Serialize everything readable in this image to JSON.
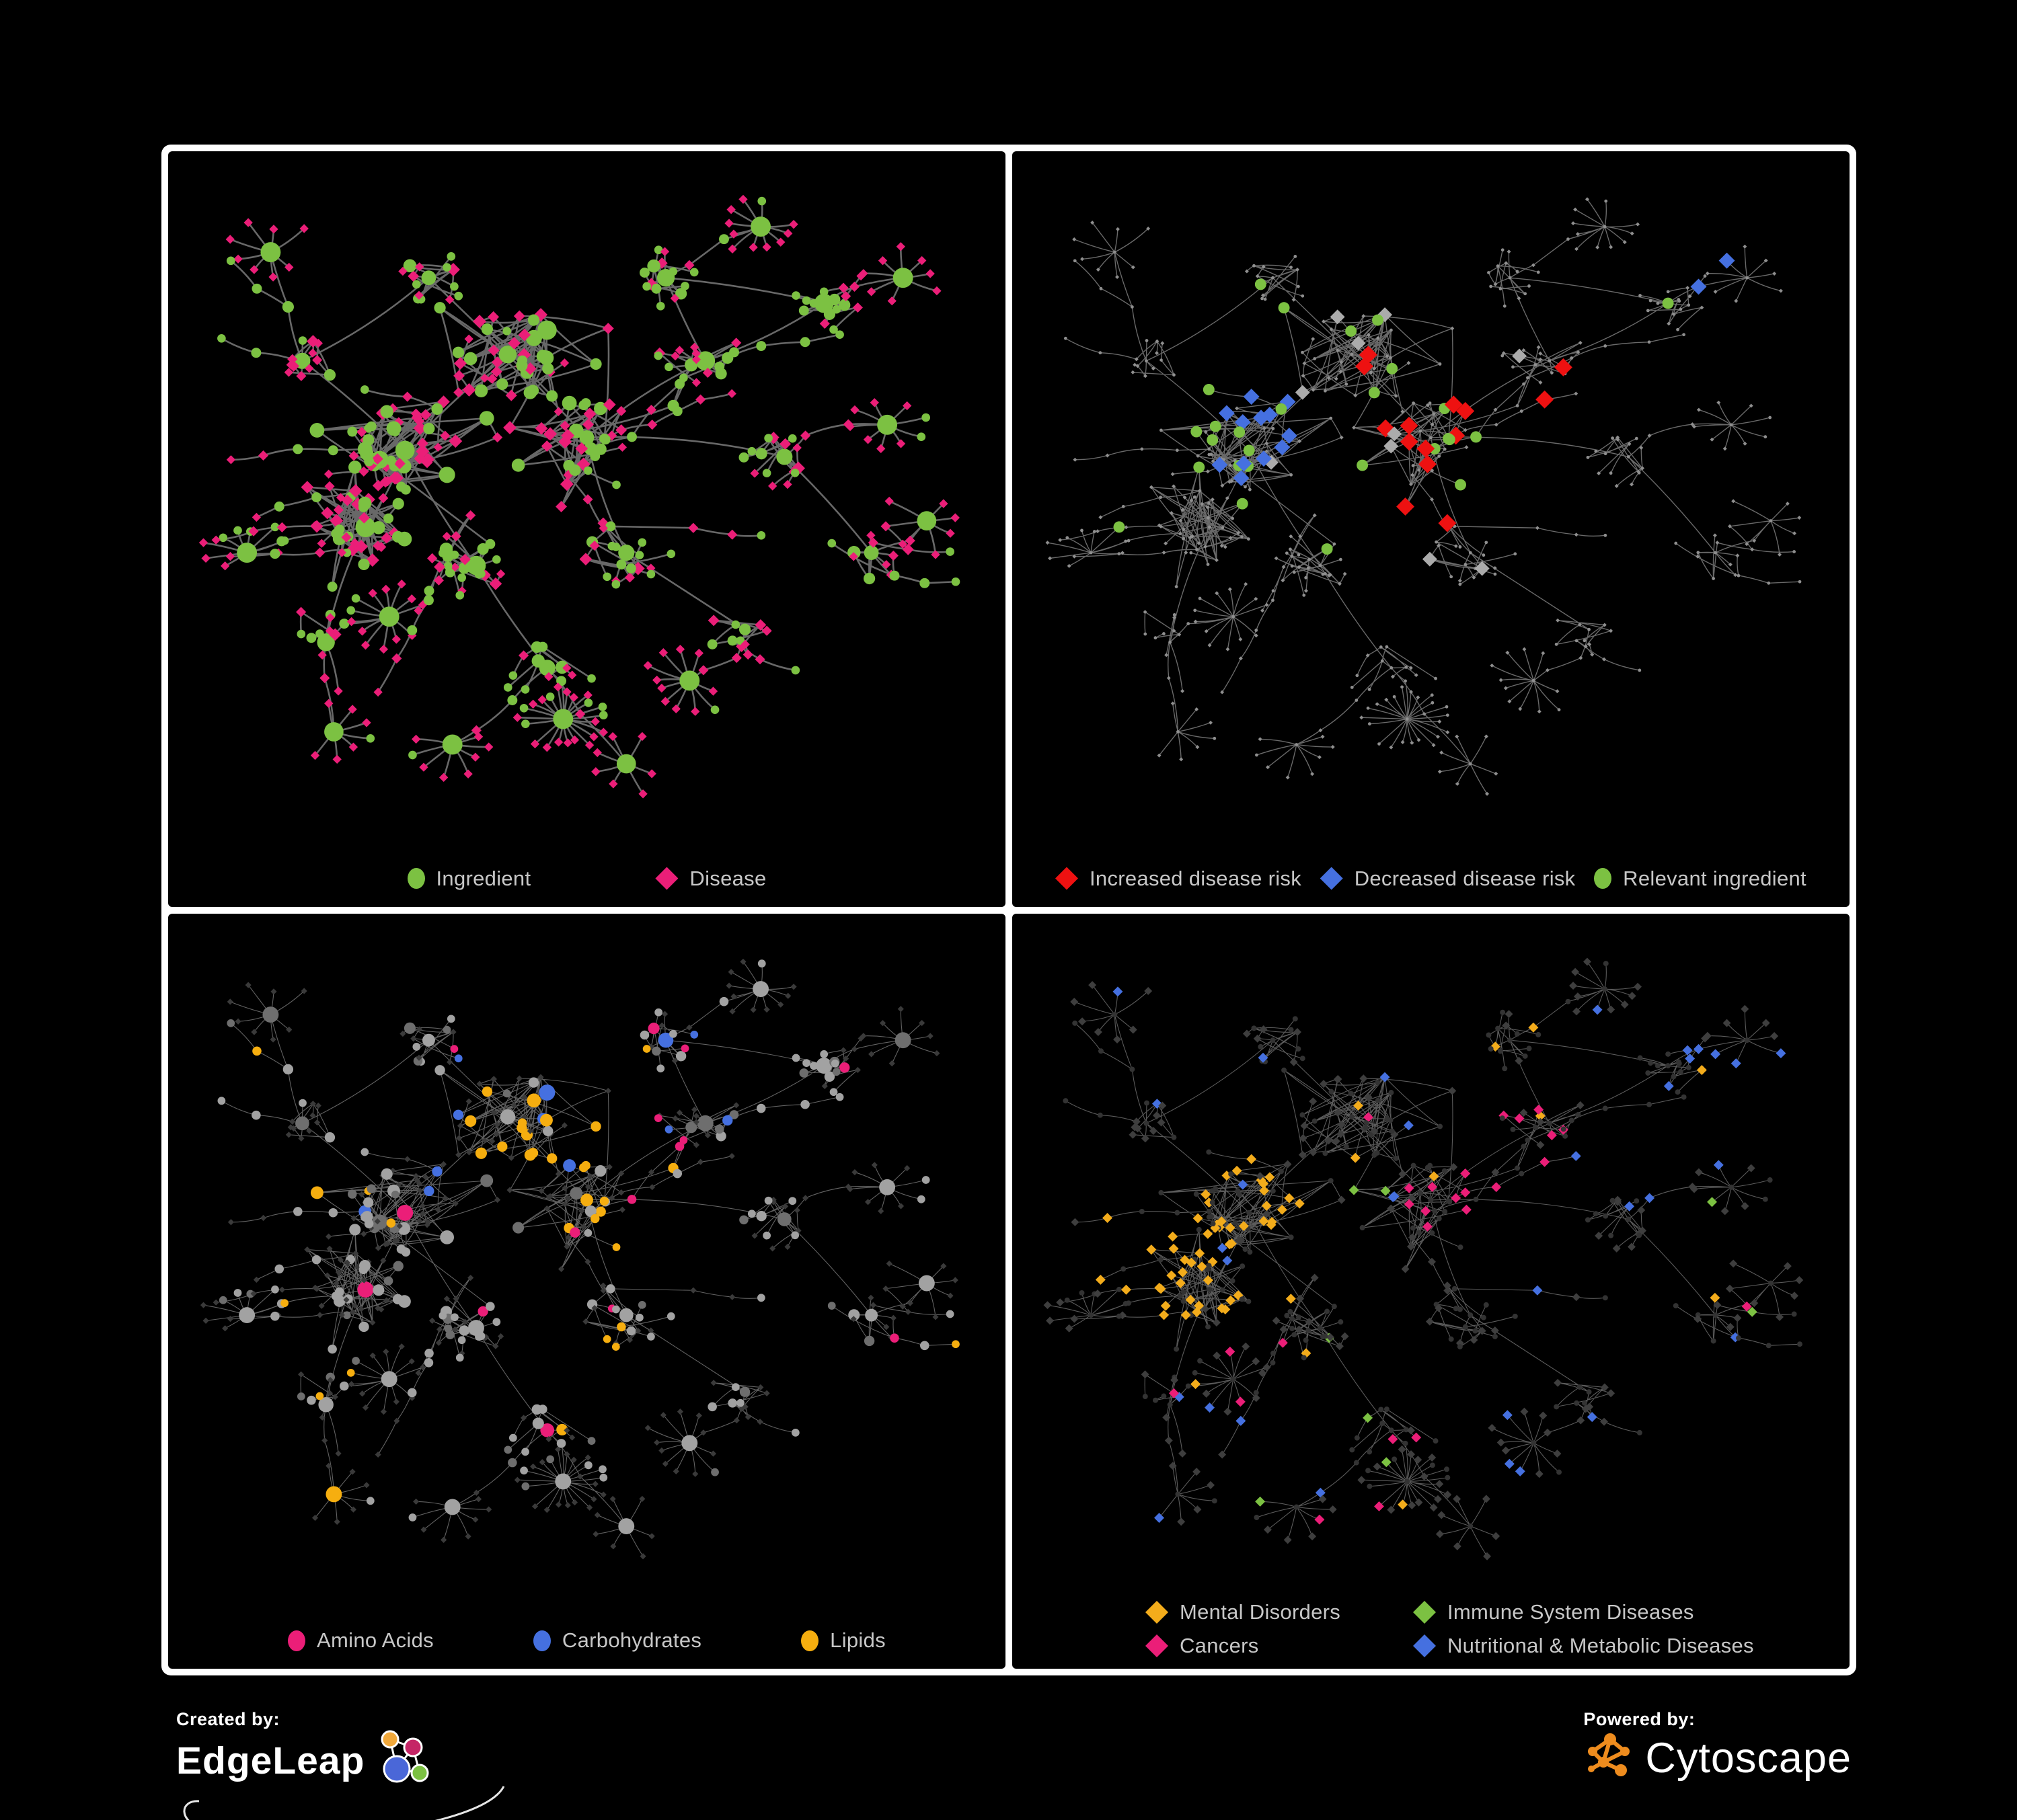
{
  "page": {
    "background": "#000000",
    "frame_color": "#ffffff",
    "legend_text_color": "#c7c7c7"
  },
  "panels": [
    {
      "id": "ingredient-disease",
      "legend_layout": "center-wide",
      "legend": [
        {
          "label": "Ingredient",
          "shape": "circle",
          "color": "#7cc142"
        },
        {
          "label": "Disease",
          "shape": "diamond",
          "color": "#eb1e78"
        }
      ]
    },
    {
      "id": "disease-risk",
      "legend_layout": "spread",
      "legend": [
        {
          "label": "Increased disease risk",
          "shape": "diamond",
          "color": "#ee1111"
        },
        {
          "label": "Decreased disease risk",
          "shape": "diamond",
          "color": "#4570e0"
        },
        {
          "label": "Relevant ingredient",
          "shape": "circle",
          "color": "#7cc142"
        }
      ]
    },
    {
      "id": "nutrient-classes",
      "legend_layout": "center",
      "legend": [
        {
          "label": "Amino Acids",
          "shape": "circle",
          "color": "#eb1e78"
        },
        {
          "label": "Carbohydrates",
          "shape": "circle",
          "color": "#4570e0"
        },
        {
          "label": "Lipids",
          "shape": "circle",
          "color": "#f6ae0f"
        }
      ]
    },
    {
      "id": "disease-classes",
      "legend_layout": "grid2",
      "legend": [
        {
          "label": "Mental Disorders",
          "shape": "diamond",
          "color": "#f3ac1b"
        },
        {
          "label": "Immune System Diseases",
          "shape": "diamond",
          "color": "#7cc142"
        },
        {
          "label": "Cancers",
          "shape": "diamond",
          "color": "#eb1e78"
        },
        {
          "label": "Nutritional & Metabolic Diseases",
          "shape": "diamond",
          "color": "#4570e0"
        }
      ]
    }
  ],
  "footer": {
    "created_by": "Created by:",
    "edgeleap_name": "EdgeLeap",
    "powered_by": "Powered by:",
    "cytoscape_name": "Cytoscape",
    "cytoscape_orange": "#ee8c1e",
    "edgeleap_node_colors": [
      "#f2a93b",
      "#c52566",
      "#4a67d8",
      "#7cc142"
    ]
  },
  "network": {
    "seed": 7,
    "palette": {
      "green": "#7cc142",
      "pink": "#eb1e78",
      "red": "#ee1111",
      "blue": "#4570e0",
      "orange": "#f6ae0f",
      "orange_diamond": "#f3ac1b",
      "gray_highlight": "#ababab",
      "base_dot": "#8f8f8f",
      "dim_diamond": "#3a3a3a",
      "dim_circle": "#333333",
      "gray_circle": "#a2a2a2",
      "gray_circle_dark": "#6e6e6e"
    },
    "edge_styles": [
      {
        "color": "#686868",
        "width": 2.6,
        "opacity": 1
      },
      {
        "color": "#6f6f6f",
        "width": 1.4,
        "opacity": 0.95
      },
      {
        "color": "#979797",
        "width": 1.1,
        "opacity": 0.65
      },
      {
        "color": "#979797",
        "width": 1.1,
        "opacity": 0.6
      }
    ]
  }
}
